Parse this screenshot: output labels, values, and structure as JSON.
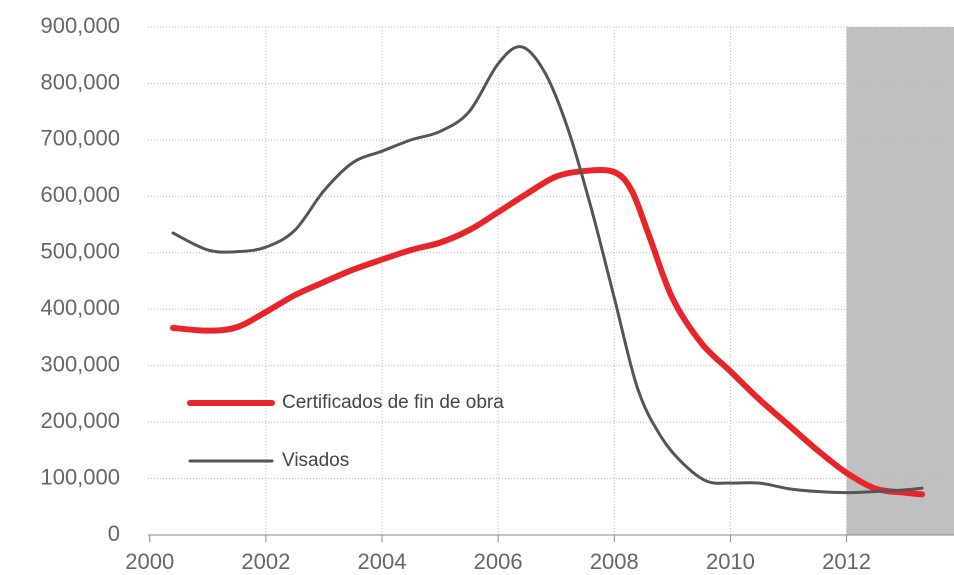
{
  "chart_data": {
    "type": "line",
    "xlim": [
      1999.97,
      2013.85
    ],
    "xticks": [
      2000,
      2002,
      2004,
      2006,
      2008,
      2010,
      2012
    ],
    "ylim": [
      0,
      900000
    ],
    "yticks": [
      0,
      {
        "value": 100000,
        "label": "100,000"
      },
      {
        "value": 200000,
        "label": "200,000"
      },
      {
        "value": 300000,
        "label": "300,000"
      },
      {
        "value": 400000,
        "label": "400,000"
      },
      {
        "value": 500000,
        "label": "500,000"
      },
      {
        "value": 600000,
        "label": "600,000"
      },
      {
        "value": 700000,
        "label": "700,000"
      },
      {
        "value": 800000,
        "label": "800,000"
      },
      {
        "value": 900000,
        "label": "900,000"
      }
    ],
    "grid": true,
    "legend": "center-left",
    "highlight_xrange": [
      2012,
      2013.85
    ],
    "highlight_color": "#c0c0c0",
    "series": [
      {
        "name": "Certificados de fin de obra",
        "color": "#e8262a",
        "width": 6,
        "x": [
          2000.4,
          2001,
          2001.5,
          2002,
          2002.5,
          2003,
          2003.5,
          2004,
          2004.5,
          2005,
          2005.5,
          2006,
          2006.5,
          2007,
          2007.5,
          2008,
          2008.3,
          2008.6,
          2009,
          2009.5,
          2010,
          2010.5,
          2011,
          2011.5,
          2012,
          2012.5,
          2013,
          2013.3
        ],
        "values": [
          367000,
          362000,
          368000,
          395000,
          425000,
          448000,
          470000,
          488000,
          505000,
          518000,
          540000,
          572000,
          605000,
          635000,
          645000,
          643000,
          610000,
          530000,
          420000,
          340000,
          290000,
          240000,
          195000,
          150000,
          110000,
          82000,
          75000,
          72000
        ]
      },
      {
        "name": "Visados",
        "color": "#555555",
        "width": 3,
        "x": [
          2000.4,
          2001,
          2001.5,
          2002,
          2002.5,
          2003,
          2003.5,
          2004,
          2004.5,
          2005,
          2005.5,
          2006,
          2006.4,
          2006.8,
          2007.2,
          2007.6,
          2008,
          2008.4,
          2008.8,
          2009.2,
          2009.6,
          2010,
          2010.5,
          2011,
          2011.5,
          2012,
          2012.5,
          2013,
          2013.3
        ],
        "values": [
          535000,
          505000,
          502000,
          510000,
          540000,
          610000,
          660000,
          680000,
          700000,
          715000,
          750000,
          835000,
          865000,
          820000,
          720000,
          580000,
          420000,
          260000,
          175000,
          125000,
          95000,
          92000,
          92000,
          82000,
          77000,
          75000,
          77000,
          80000,
          83000
        ]
      }
    ]
  }
}
